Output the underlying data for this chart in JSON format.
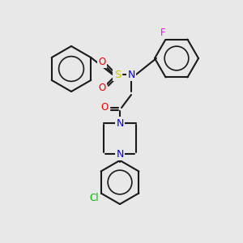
{
  "background_color": "#e8e8e8",
  "bond_color": "#1a1a1a",
  "colors": {
    "N": "#0000ee",
    "O": "#ee0000",
    "S": "#cccc00",
    "F": "#ff00ff",
    "Cl": "#00bb00",
    "C": "#1a1a1a"
  },
  "linewidth": 1.5,
  "font_size": 8.5
}
